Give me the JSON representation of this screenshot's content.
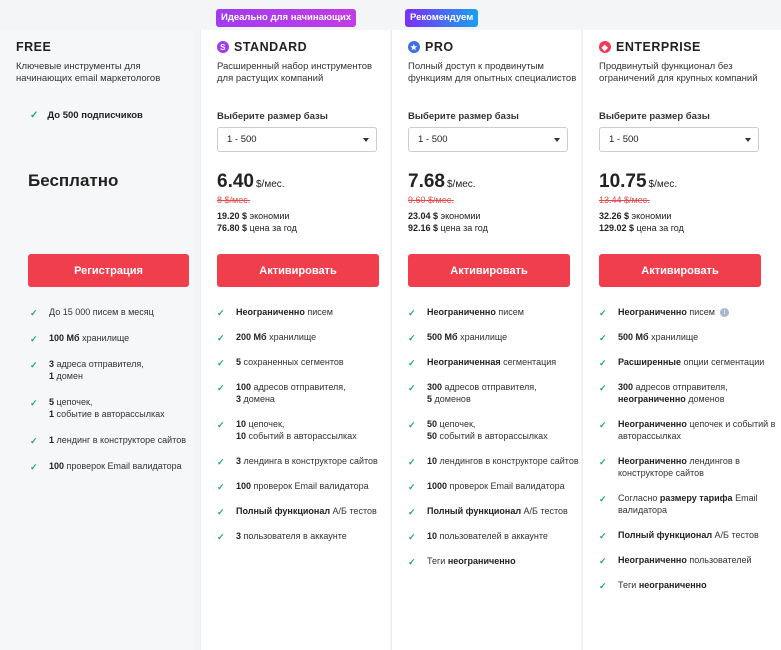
{
  "badges": {
    "standard": "Идеально для начинающих",
    "pro": "Рекомендуем"
  },
  "colors": {
    "cta": "#f03e4d",
    "check": "#1fa67a",
    "old_price": "#e64b4b",
    "standard_icon": "#a03cf0",
    "pro_icon": "#3e6ee8",
    "enterprise_icon": "#f03b58"
  },
  "plans": {
    "free": {
      "name": "FREE",
      "desc": "Ключевые инструменты для начинающих email маркетологов",
      "check_text": "До 500 подписчиков",
      "price": "Бесплатно",
      "cta": "Регистрация",
      "features": [
        {
          "b": "",
          "t": "До 15 000 писем в месяц"
        },
        {
          "b": "100 Мб",
          "t": " хранилище"
        },
        {
          "b": "3",
          "t": " адреса отправителя,",
          "b2": "1",
          "t2": " домен"
        },
        {
          "b": "5",
          "t": " цепочек, ",
          "b2": "1",
          "t2": " событие в авторассылках"
        },
        {
          "b": "1",
          "t": " лендинг в конструкторе сайтов"
        },
        {
          "b": "100",
          "t": " проверок Email валидатора"
        }
      ]
    },
    "standard": {
      "name": "STANDARD",
      "icon": "s-badge-icon",
      "desc": "Расширенный набор инструментов для растущих компаний",
      "select_label": "Выберите размер базы",
      "select_value": "1 - 500",
      "price": "6.40",
      "per": "$/мес.",
      "old": "8 $/мес.",
      "save1_b": "19.20 $",
      "save1_t": " экономии",
      "save2_b": "76.80 $",
      "save2_t": " цена за год",
      "cta": "Активировать",
      "features": [
        {
          "b": "Неограниченно",
          "t": " писем"
        },
        {
          "b": "200 Мб",
          "t": " хранилище"
        },
        {
          "b": "5",
          "t": " сохраненных сегментов"
        },
        {
          "b": "100",
          "t": " адресов отправителя,",
          "b2": "3",
          "t2": " домена"
        },
        {
          "b": "10",
          "t": " цепочек, ",
          "b2": "10",
          "t2": " событий в авторассылках"
        },
        {
          "b": "3",
          "t": " лендинга в конструкторе сайтов"
        },
        {
          "b": "100",
          "t": " проверок Email валидатора"
        },
        {
          "b": "Полный функционал",
          "t": " А/Б тестов"
        },
        {
          "b": "3",
          "t": " пользователя в аккаунте"
        }
      ]
    },
    "pro": {
      "name": "PRO",
      "icon": "star-badge-icon",
      "desc": "Полный доступ к продвинутым функциям для опытных специалистов",
      "select_label": "Выберите размер базы",
      "select_value": "1 - 500",
      "price": "7.68",
      "per": "$/мес.",
      "old": "9.60 $/мес.",
      "save1_b": "23.04 $",
      "save1_t": " экономии",
      "save2_b": "92.16 $",
      "save2_t": " цена за год",
      "cta": "Активировать",
      "features": [
        {
          "b": "Неограниченно",
          "t": " писем"
        },
        {
          "b": "500 Мб",
          "t": " хранилище"
        },
        {
          "b": "Неограниченная",
          "t": " сегментация"
        },
        {
          "b": "300",
          "t": " адресов отправителя,",
          "b2": "5",
          "t2": " доменов"
        },
        {
          "b": "50",
          "t": " цепочек, ",
          "b2": "50",
          "t2": " событий в авторассылках"
        },
        {
          "b": "10",
          "t": " лендингов в конструкторе сайтов"
        },
        {
          "b": "1000",
          "t": " проверок Email валидатора"
        },
        {
          "b": "Полный функционал",
          "t": " А/Б тестов"
        },
        {
          "b": "10",
          "t": " пользователей в аккаунте"
        },
        {
          "b": "",
          "t": "Теги ",
          "b2": "неограниченно",
          "t2": ""
        }
      ]
    },
    "enterprise": {
      "name": "ENTERPRISE",
      "icon": "diamond-badge-icon",
      "desc": "Продвинутый функционал без ограничений для крупных компаний",
      "select_label": "Выберите размер базы",
      "select_value": "1 - 500",
      "price": "10.75",
      "per": "$/мес.",
      "old": "13.44 $/мес.",
      "save1_b": "32.26 $",
      "save1_t": " экономии",
      "save2_b": "129.02 $",
      "save2_t": " цена за год",
      "cta": "Активировать",
      "features": [
        {
          "b": "Неограниченно",
          "t": " писем",
          "info": true
        },
        {
          "b": "500 Мб",
          "t": " хранилище"
        },
        {
          "b": "Расширенные",
          "t": " опции сегментации"
        },
        {
          "b": "300",
          "t": " адресов отправителя,",
          "b2": "неограниченно",
          "t2": " доменов"
        },
        {
          "b": "Неограниченно",
          "t": " цепочек и событий в авторассылках"
        },
        {
          "b": "Неограниченно",
          "t": " лендингов в конструкторе сайтов"
        },
        {
          "b": "",
          "t": "Согласно ",
          "b2": "размеру тарифа",
          "t2": " Email валидатора"
        },
        {
          "b": "Полный функционал",
          "t": " А/Б тестов"
        },
        {
          "b": "Неограниченно",
          "t": " пользователей"
        },
        {
          "b": "",
          "t": "Теги ",
          "b2": "неограниченно",
          "t2": ""
        }
      ]
    }
  }
}
